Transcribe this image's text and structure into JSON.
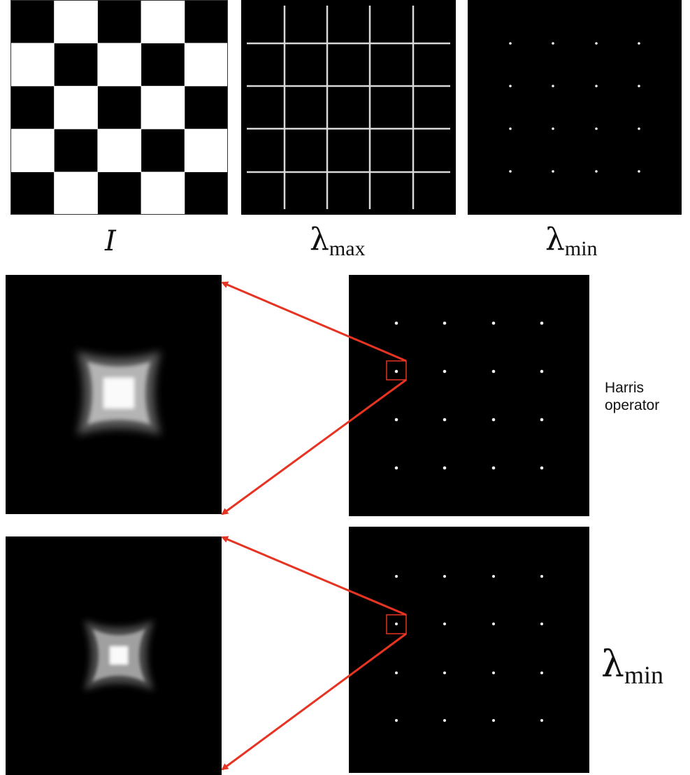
{
  "labels": {
    "image_symbol": "I",
    "lambda_symbol": "λ",
    "max_subscript": "max",
    "min_subscript": "min",
    "harris_line1": "Harris",
    "harris_line2": "operator"
  },
  "grid": {
    "checker_rows": 5,
    "checker_cols": 5,
    "corner_rows": 4,
    "corner_cols": 4
  },
  "colors": {
    "background": "#ffffff",
    "panel": "#000000",
    "checker_light": "#ffffff",
    "edge_line": "#d8d8d8",
    "corner_dot": "#f2f2f2",
    "arrow": "#e63322",
    "highlight_box": "#e63322"
  }
}
